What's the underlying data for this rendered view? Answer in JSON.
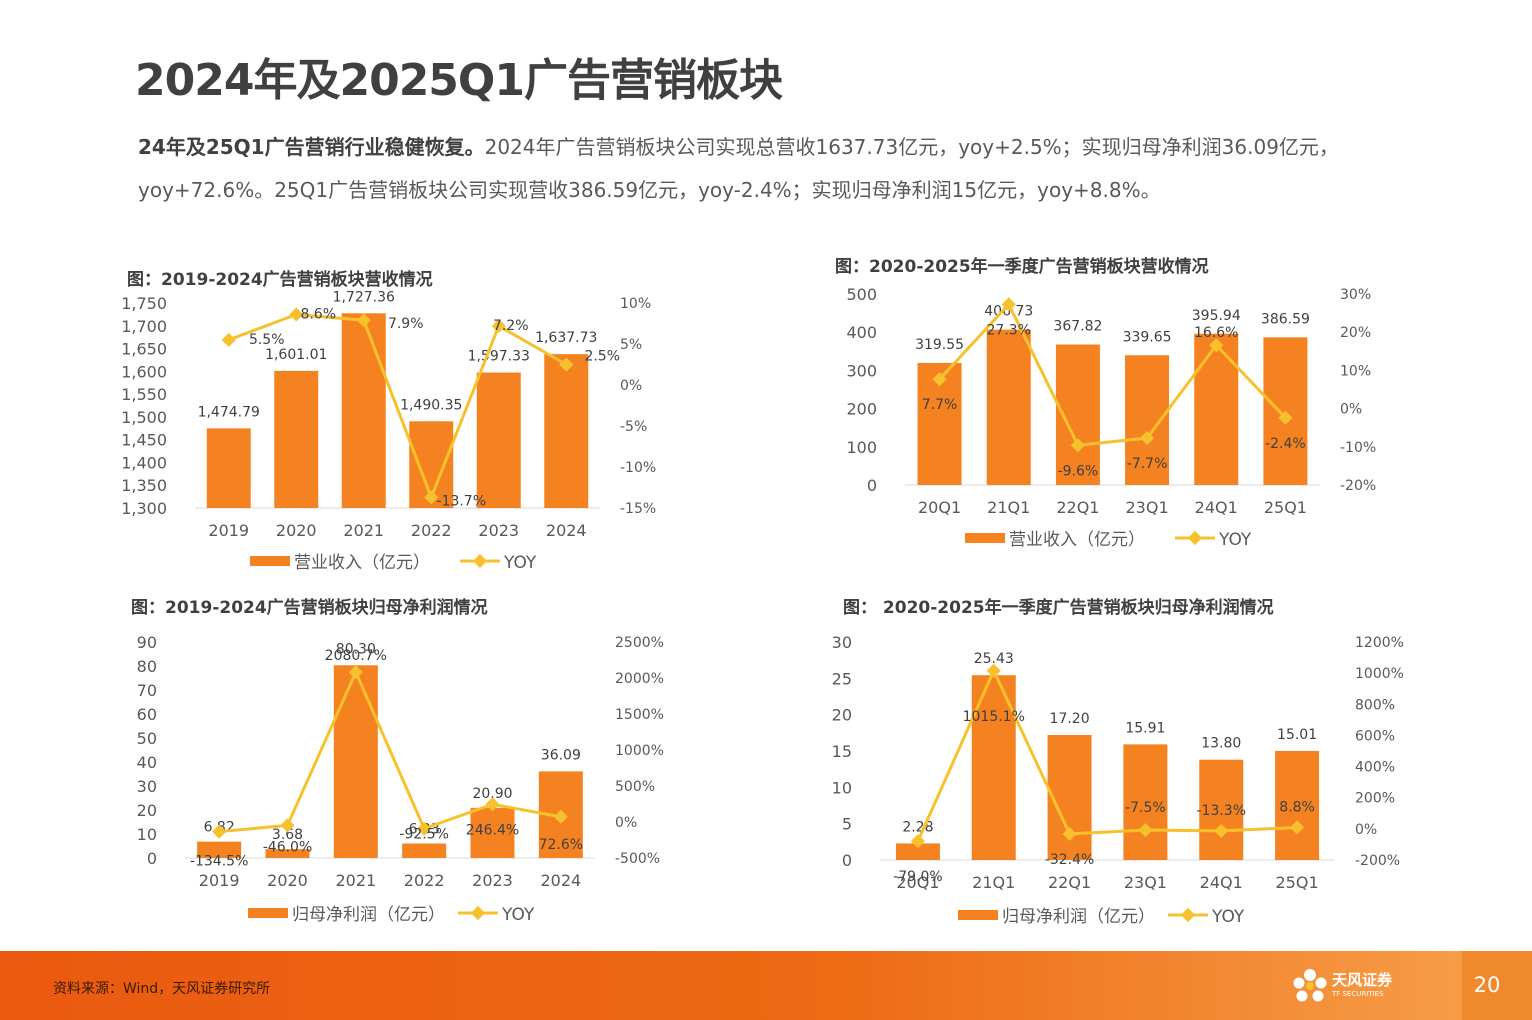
{
  "page": {
    "title": "2024年及2025Q1广告营销板块",
    "intro_bold": "24年及25Q1广告营销行业稳健恢复。",
    "intro_text": "2024年广告营销板块公司实现总营收1637.73亿元，yoy+2.5%；实现归母净利润36.09亿元，yoy+72.6%。25Q1广告营销板块公司实现营收386.59亿元，yoy-2.4%；实现归母净利润15亿元，yoy+8.8%。",
    "source": "资料来源：Wind，天风证券研究所",
    "page_number": "20",
    "logo_text": "天风证券",
    "logo_sub": "TF SECURITIES"
  },
  "colors": {
    "bar": "#f58220",
    "line": "#f7c12d",
    "text": "#404040",
    "axis": "#595959"
  },
  "chart_data": [
    {
      "type": "bar",
      "title": "图：2019-2024广告营销板块营收情况",
      "categories": [
        "2019",
        "2020",
        "2021",
        "2022",
        "2023",
        "2024"
      ],
      "series": [
        {
          "name": "营业收入（亿元）",
          "values": [
            1474.79,
            1601.01,
            1727.36,
            1490.35,
            1597.33,
            1637.73
          ],
          "labels": [
            "1,474.79",
            "1,601.01",
            "1,727.36",
            "1,490.35",
            "1,597.33",
            "1,637.73"
          ]
        },
        {
          "name": "YOY",
          "type": "line",
          "values": [
            5.5,
            8.6,
            7.9,
            -13.7,
            7.2,
            2.5
          ],
          "labels": [
            "5.5%",
            "8.6%",
            "7.9%",
            "-13.7%",
            "7.2%",
            "2.5%"
          ]
        }
      ],
      "ylim": [
        1300,
        1750
      ],
      "yticks": [
        "1,300",
        "1,350",
        "1,400",
        "1,450",
        "1,500",
        "1,550",
        "1,600",
        "1,650",
        "1,700",
        "1,750"
      ],
      "y2lim": [
        -15,
        10
      ],
      "y2ticks": [
        "-15%",
        "-10%",
        "-5%",
        "0%",
        "5%",
        "10%"
      ],
      "legend": [
        "营业收入（亿元）",
        "YOY"
      ]
    },
    {
      "type": "bar",
      "title": "图：2020-2025年一季度广告营销板块营收情况",
      "categories": [
        "20Q1",
        "21Q1",
        "22Q1",
        "23Q1",
        "24Q1",
        "25Q1"
      ],
      "series": [
        {
          "name": "营业收入（亿元）",
          "values": [
            319.55,
            406.73,
            367.82,
            339.65,
            395.94,
            386.59
          ],
          "labels": [
            "319.55",
            "406.73",
            "367.82",
            "339.65",
            "395.94",
            "386.59"
          ]
        },
        {
          "name": "YOY",
          "type": "line",
          "values": [
            7.7,
            27.3,
            -9.6,
            -7.7,
            16.6,
            -2.4
          ],
          "labels": [
            "7.7%",
            "27.3%",
            "-9.6%",
            "-7.7%",
            "16.6%",
            "-2.4%"
          ]
        }
      ],
      "ylim": [
        0,
        500
      ],
      "yticks": [
        "0",
        "100",
        "200",
        "300",
        "400",
        "500"
      ],
      "y2lim": [
        -20,
        30
      ],
      "y2ticks": [
        "-20%",
        "-10%",
        "0%",
        "10%",
        "20%",
        "30%"
      ],
      "legend": [
        "营业收入（亿元）",
        "YOY"
      ]
    },
    {
      "type": "bar",
      "title": "图：2019-2024广告营销板块归母净利润情况",
      "categories": [
        "2019",
        "2020",
        "2021",
        "2022",
        "2023",
        "2024"
      ],
      "series": [
        {
          "name": "归母净利润（亿元）",
          "values": [
            6.82,
            3.68,
            80.3,
            6.03,
            20.9,
            36.09
          ],
          "labels": [
            "6.82",
            "3.68",
            "80.30",
            "6.03",
            "20.90",
            "36.09"
          ]
        },
        {
          "name": "YOY",
          "type": "line",
          "values": [
            -134.5,
            -46.0,
            2080.7,
            -92.5,
            246.4,
            72.6
          ],
          "labels": [
            "-134.5%",
            "-46.0%",
            "2080.7%",
            "-92.5%",
            "246.4%",
            "72.6%"
          ]
        }
      ],
      "ylim": [
        0,
        90
      ],
      "yticks": [
        "0",
        "10",
        "20",
        "30",
        "40",
        "50",
        "60",
        "70",
        "80",
        "90"
      ],
      "y2lim": [
        -500,
        2500
      ],
      "y2ticks": [
        "-500%",
        "0%",
        "500%",
        "1000%",
        "1500%",
        "2000%",
        "2500%"
      ],
      "legend": [
        "归母净利润（亿元）",
        "YOY"
      ]
    },
    {
      "type": "bar",
      "title": "图： 2020-2025年一季度广告营销板块归母净利润情况",
      "categories": [
        "20Q1",
        "21Q1",
        "22Q1",
        "23Q1",
        "24Q1",
        "25Q1"
      ],
      "series": [
        {
          "name": "归母净利润（亿元）",
          "values": [
            2.28,
            25.43,
            17.2,
            15.91,
            13.8,
            15.01
          ],
          "labels": [
            "2.28",
            "25.43",
            "17.20",
            "15.91",
            "13.80",
            "15.01"
          ]
        },
        {
          "name": "YOY",
          "type": "line",
          "values": [
            -79.0,
            1015.1,
            -32.4,
            -7.5,
            -13.3,
            8.8
          ],
          "labels": [
            "-79.0%",
            "1015.1%",
            "-32.4%",
            "-7.5%",
            "-13.3%",
            "8.8%"
          ]
        }
      ],
      "ylim": [
        0,
        30
      ],
      "yticks": [
        "0",
        "5",
        "10",
        "15",
        "20",
        "25",
        "30"
      ],
      "y2lim": [
        -200,
        1200
      ],
      "y2ticks": [
        "-200%",
        "0%",
        "200%",
        "400%",
        "600%",
        "800%",
        "1000%",
        "1200%"
      ],
      "legend": [
        "归母净利润（亿元）",
        "YOY"
      ]
    }
  ]
}
